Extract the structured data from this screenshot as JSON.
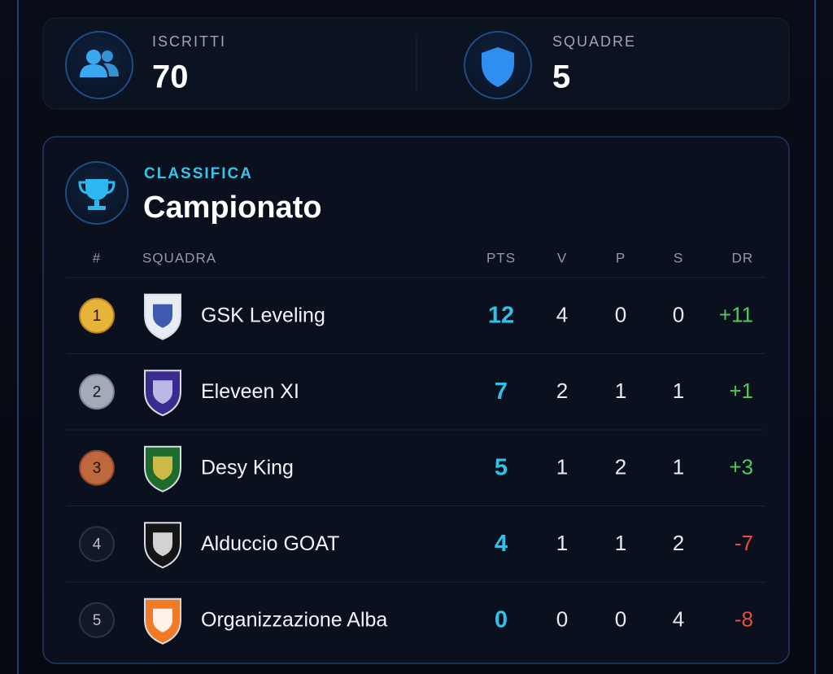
{
  "stats": [
    {
      "label": "ISCRITTI",
      "value": 70
    },
    {
      "label": "SQUADRE",
      "value": 5
    }
  ],
  "standings": {
    "kicker": "CLASSIFICA",
    "title": "Campionato",
    "columns": [
      "#",
      "SQUADRA",
      "PTS",
      "V",
      "P",
      "S",
      "DR"
    ],
    "rows": [
      [
        1,
        "GSK Leveling",
        12,
        4,
        0,
        0,
        "+11"
      ],
      [
        2,
        "Eleveen XI",
        7,
        2,
        1,
        1,
        "+1"
      ],
      [
        3,
        "Desy King",
        5,
        1,
        2,
        1,
        "+3"
      ],
      [
        4,
        "Alduccio GOAT",
        4,
        1,
        1,
        2,
        "-7"
      ],
      [
        5,
        "Organizzazione Alba",
        0,
        0,
        0,
        4,
        "-8"
      ]
    ]
  }
}
